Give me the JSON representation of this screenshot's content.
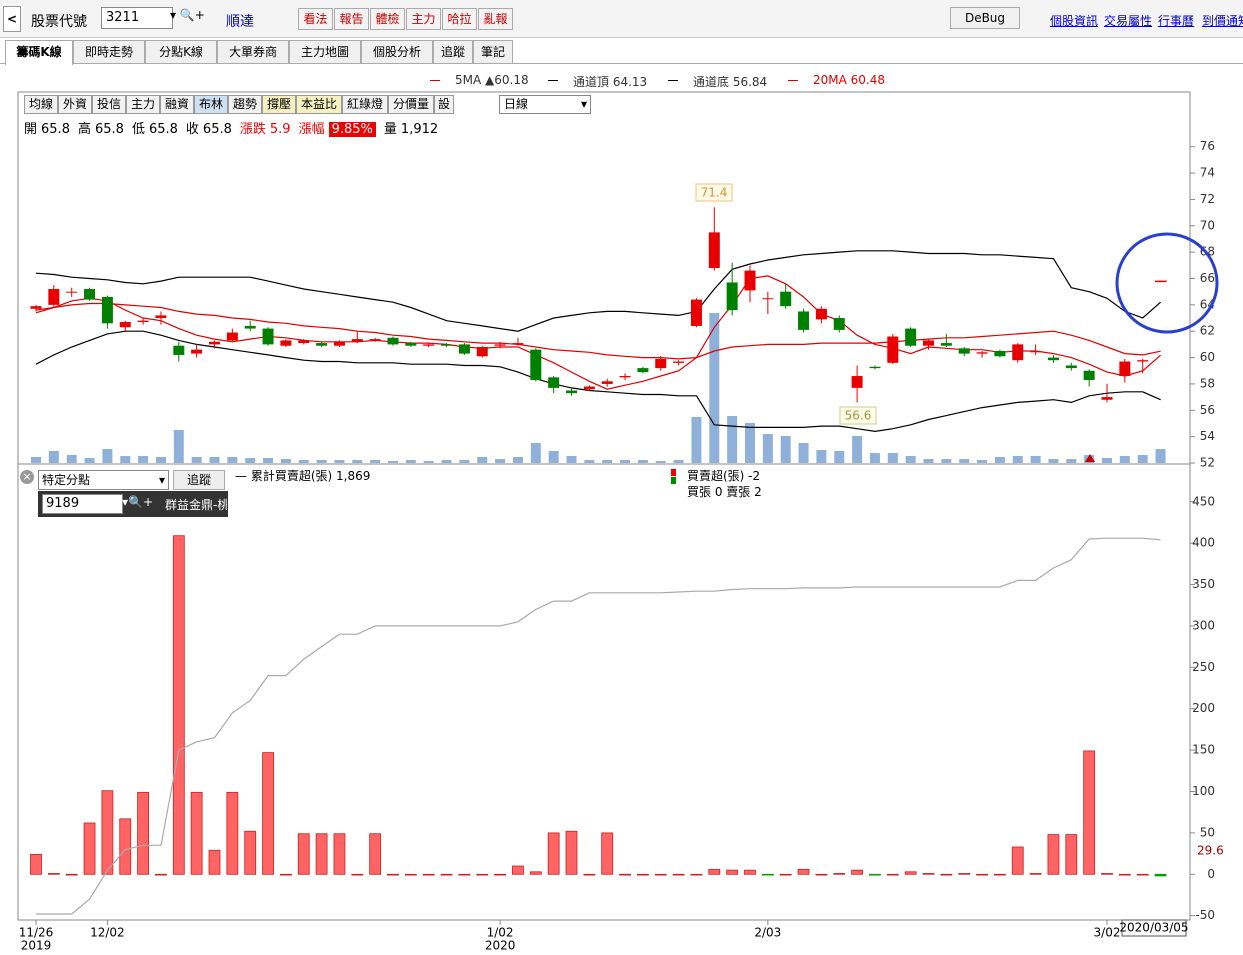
{
  "toolbar": {
    "stock_code_label": "股票代號",
    "stock_code": "3211",
    "stock_name": "順達",
    "buttons": [
      "看法",
      "報告",
      "體檢",
      "主力",
      "哈拉",
      "亂報"
    ],
    "debug": "DeBug",
    "links": [
      "個股資訊",
      "交易屬性",
      "行事曆",
      "到價通知"
    ]
  },
  "tabs": [
    "籌碼K線",
    "即時走勢",
    "分點K線",
    "大單券商",
    "主力地圖",
    "個股分析",
    "追蹤",
    "筆記"
  ],
  "legend": [
    {
      "text": "5MA ▲60.18",
      "color": "#e00000"
    },
    {
      "text": "通道頂 64.13",
      "color": "#000000"
    },
    {
      "text": "通道底 56.84",
      "color": "#000000"
    },
    {
      "text": "20MA 60.48",
      "color": "#e00000"
    }
  ],
  "chart_toolbar": {
    "buttons": [
      "均線",
      "外資",
      "投信",
      "主力",
      "融資",
      "布林",
      "趨勢",
      "撐壓",
      "本益比",
      "紅綠燈",
      "分價量",
      "設"
    ],
    "period": "日線"
  },
  "quote": [
    {
      "label": "開",
      "value": 65.8
    },
    {
      "label": "高",
      "value": 65.8
    },
    {
      "label": "低",
      "value": 65.8
    },
    {
      "label": "收",
      "value": 65.8
    },
    {
      "label": "漲跌",
      "value": 5.9
    },
    {
      "label": "漲幅",
      "value": "9.85%"
    },
    {
      "label": "量",
      "value": "1,912"
    }
  ],
  "broker_panel": {
    "mode": "特定分點",
    "track": "追蹤",
    "broker_code": "9189",
    "broker_name": "群益金鼎-桃",
    "cum_legend": "累計買賣超(張) 1,869",
    "net_legend": "買賣超(張) -2",
    "buy_sell": "買張 0 賣張 2"
  },
  "chart_data": [
    {
      "type": "candlestick",
      "categories": [
        "11/26",
        null,
        null,
        null,
        "12/02",
        null,
        null,
        null,
        null,
        null,
        null,
        null,
        null,
        null,
        null,
        null,
        null,
        null,
        null,
        null,
        null,
        null,
        null,
        null,
        null,
        null,
        "1/02",
        null,
        null,
        null,
        null,
        null,
        null,
        null,
        null,
        null,
        null,
        null,
        null,
        null,
        null,
        "2/03",
        null,
        null,
        null,
        null,
        null,
        null,
        null,
        null,
        null,
        null,
        null,
        null,
        null,
        null,
        null,
        null,
        null,
        null,
        "3/02",
        null,
        null,
        null
      ],
      "year_labels": [
        "2019",
        null,
        null,
        null,
        null,
        null,
        null,
        null,
        null,
        null,
        null,
        null,
        null,
        null,
        null,
        null,
        null,
        null,
        null,
        null,
        null,
        null,
        null,
        null,
        null,
        null,
        "2020",
        null,
        null,
        null,
        null,
        null,
        null,
        null,
        null,
        null,
        null,
        null,
        null,
        null,
        null,
        null,
        null,
        null,
        null,
        null,
        null,
        null,
        null,
        null,
        null,
        null,
        null,
        null,
        null,
        null,
        null,
        null,
        null,
        null
      ],
      "open": [
        63.7,
        64.0,
        65.0,
        65.2,
        64.6,
        62.3,
        62.7,
        63.0,
        60.9,
        60.3,
        61.0,
        61.3,
        62.4,
        62.2,
        60.9,
        61.1,
        61.1,
        60.9,
        61.2,
        61.3,
        61.5,
        61.1,
        60.9,
        61.0,
        61.0,
        60.1,
        60.9,
        61.0,
        60.6,
        58.5,
        57.5,
        57.6,
        58.0,
        58.5,
        59.2,
        59.2,
        59.6,
        62.4,
        66.8,
        65.7,
        65.1,
        64.5,
        65.0,
        63.5,
        62.9,
        63.0,
        57.7,
        59.3,
        59.6,
        62.2,
        60.9,
        61.1,
        60.7,
        60.3,
        60.5,
        59.8,
        60.4,
        60.0,
        59.4,
        59.0,
        56.8,
        58.6,
        59.7,
        65.8
      ],
      "high": [
        64.0,
        65.5,
        65.3,
        65.3,
        64.7,
        62.8,
        63.0,
        63.5,
        61.2,
        61.0,
        61.3,
        62.2,
        62.8,
        62.3,
        61.4,
        61.4,
        61.2,
        61.3,
        62.0,
        61.5,
        61.6,
        61.2,
        61.1,
        61.1,
        61.1,
        60.9,
        61.2,
        61.5,
        60.7,
        58.6,
        57.7,
        57.9,
        58.4,
        58.8,
        59.3,
        60.1,
        59.8,
        64.5,
        71.4,
        67.2,
        67.0,
        65.0,
        65.6,
        63.7,
        63.9,
        63.2,
        59.4,
        59.4,
        61.8,
        62.3,
        61.4,
        61.8,
        60.8,
        60.5,
        60.6,
        61.1,
        61.0,
        60.2,
        59.6,
        59.1,
        58.0,
        59.9,
        59.9,
        65.8
      ],
      "low": [
        63.5,
        63.8,
        64.6,
        64.3,
        62.2,
        62.0,
        62.5,
        62.5,
        59.7,
        60.0,
        60.7,
        61.2,
        62.0,
        60.9,
        60.8,
        61.0,
        60.8,
        60.8,
        61.1,
        61.2,
        60.9,
        60.8,
        60.8,
        60.8,
        60.2,
        60.0,
        60.7,
        60.9,
        58.2,
        57.3,
        57.1,
        57.5,
        57.8,
        58.3,
        58.8,
        59.0,
        59.4,
        62.3,
        66.6,
        63.2,
        64.2,
        63.3,
        63.7,
        61.9,
        62.6,
        61.9,
        56.6,
        59.1,
        59.5,
        60.8,
        60.6,
        60.8,
        60.1,
        60.0,
        60.0,
        59.6,
        60.2,
        59.6,
        59.0,
        57.8,
        56.6,
        58.1,
        58.8,
        65.8
      ],
      "close": [
        63.9,
        65.2,
        65.0,
        64.4,
        62.6,
        62.7,
        62.8,
        63.2,
        60.2,
        60.6,
        61.2,
        61.9,
        62.2,
        61.0,
        61.3,
        61.3,
        60.9,
        61.2,
        61.4,
        61.4,
        61.0,
        60.9,
        61.0,
        60.9,
        60.3,
        60.8,
        61.0,
        61.1,
        58.3,
        57.7,
        57.3,
        57.8,
        58.2,
        58.6,
        58.9,
        59.9,
        59.7,
        64.4,
        69.5,
        63.6,
        66.6,
        64.5,
        63.9,
        62.1,
        63.7,
        62.1,
        58.6,
        59.2,
        61.6,
        60.9,
        61.3,
        60.9,
        60.3,
        60.4,
        60.1,
        61.0,
        60.5,
        59.8,
        59.2,
        58.3,
        57.0,
        59.7,
        59.8,
        65.8
      ],
      "volume": [
        822,
        1644,
        1096,
        685,
        1918,
        959,
        959,
        822,
        4521,
        822,
        822,
        822,
        685,
        685,
        548,
        411,
        411,
        411,
        411,
        411,
        274,
        411,
        274,
        411,
        411,
        822,
        548,
        822,
        2740,
        1644,
        959,
        411,
        411,
        411,
        411,
        274,
        411,
        6302,
        20550,
        6439,
        5480,
        3973,
        3699,
        2740,
        1781,
        1644,
        3699,
        1370,
        1370,
        959,
        548,
        548,
        548,
        411,
        822,
        959,
        959,
        548,
        548,
        1096,
        685,
        959,
        1096,
        1912
      ],
      "up_color": "#e80000",
      "down_color": "#008000",
      "volume_color": "#8fb1d9",
      "series": [
        {
          "name": "5MA",
          "color": "#e00000",
          "values": [
            63.4,
            63.8,
            64.3,
            64.5,
            64.3,
            63.6,
            63.0,
            62.8,
            62.2,
            61.7,
            61.4,
            61.2,
            61.4,
            61.6,
            61.5,
            61.3,
            61.2,
            61.2,
            61.2,
            61.3,
            61.2,
            61.1,
            61.1,
            61.0,
            60.8,
            60.7,
            60.8,
            60.8,
            60.2,
            59.6,
            58.9,
            58.2,
            57.6,
            57.9,
            58.2,
            58.6,
            59.0,
            60.0,
            62.3,
            64.0,
            66.0,
            66.2,
            65.6,
            64.6,
            63.3,
            62.8,
            61.7,
            61.0,
            60.7,
            60.3,
            60.8,
            60.7,
            60.6,
            60.6,
            60.4,
            60.5,
            60.5,
            60.3,
            60.0,
            59.5,
            58.9,
            58.6,
            59.0,
            60.18
          ]
        },
        {
          "name": "通道頂",
          "color": "#000000",
          "values": [
            66.4,
            66.3,
            66.1,
            66.0,
            65.9,
            65.7,
            65.6,
            65.8,
            66.1,
            66.1,
            66.1,
            66.1,
            66.1,
            65.8,
            65.5,
            65.2,
            65.0,
            64.8,
            64.6,
            64.4,
            64.2,
            63.8,
            63.3,
            62.8,
            62.6,
            62.4,
            62.2,
            62.0,
            62.5,
            63.0,
            63.2,
            63.4,
            63.5,
            63.5,
            63.4,
            63.3,
            63.2,
            63.5,
            65.2,
            66.7,
            67.1,
            67.4,
            67.6,
            67.8,
            67.9,
            68.0,
            68.1,
            68.1,
            68.1,
            68.0,
            67.9,
            67.9,
            67.9,
            67.8,
            67.8,
            67.7,
            67.6,
            67.5,
            65.3,
            65.0,
            64.5,
            63.5,
            63.0,
            64.2
          ]
        },
        {
          "name": "通道底",
          "color": "#000000",
          "values": [
            59.5,
            60.2,
            60.8,
            61.3,
            61.8,
            62.0,
            62.0,
            61.7,
            61.3,
            61.0,
            60.8,
            60.6,
            60.4,
            60.2,
            60.0,
            59.8,
            59.7,
            59.7,
            59.6,
            59.6,
            59.6,
            59.5,
            59.5,
            59.5,
            59.4,
            59.4,
            59.3,
            58.9,
            58.4,
            58.0,
            57.7,
            57.5,
            57.4,
            57.3,
            57.2,
            57.2,
            57.1,
            57.1,
            54.9,
            54.8,
            54.7,
            54.7,
            54.7,
            54.7,
            54.8,
            54.8,
            54.6,
            54.4,
            54.6,
            54.9,
            55.3,
            55.6,
            55.9,
            56.2,
            56.4,
            56.6,
            56.7,
            56.8,
            56.6,
            57.1,
            57.3,
            57.4,
            57.4,
            56.8
          ]
        },
        {
          "name": "20MA",
          "color": "#e00000",
          "values": [
            63.6,
            63.8,
            64.0,
            64.1,
            64.1,
            64.0,
            63.9,
            63.8,
            63.5,
            63.3,
            63.2,
            63.0,
            62.9,
            62.7,
            62.6,
            62.4,
            62.3,
            62.2,
            62.0,
            61.9,
            61.7,
            61.6,
            61.4,
            61.3,
            61.2,
            61.1,
            61.1,
            61.0,
            60.8,
            60.6,
            60.5,
            60.4,
            60.2,
            60.1,
            60.0,
            60.0,
            59.9,
            60.0,
            60.5,
            60.8,
            60.9,
            61.0,
            61.0,
            61.0,
            61.1,
            61.1,
            61.1,
            61.1,
            61.2,
            61.3,
            61.4,
            61.5,
            61.5,
            61.6,
            61.7,
            61.8,
            61.9,
            62.0,
            61.7,
            61.3,
            60.8,
            60.3,
            60.2,
            60.48
          ]
        }
      ],
      "annotations": [
        "71.4",
        "56.6"
      ],
      "date_box": "2020/03/05",
      "ylim": [
        52,
        80
      ],
      "yticks": [
        52,
        54,
        56,
        58,
        60,
        62,
        64,
        66,
        68,
        70,
        72,
        74,
        76
      ]
    },
    {
      "type": "bar",
      "values": [
        24,
        1,
        0,
        62,
        101,
        67,
        99,
        0,
        409,
        99,
        29,
        99,
        52,
        147,
        0,
        49,
        49,
        49,
        0,
        49,
        0,
        0,
        0,
        0,
        0,
        0,
        0,
        10,
        3,
        50,
        52,
        0,
        50,
        0,
        0,
        0,
        0,
        0,
        6,
        5,
        5,
        -1,
        0,
        6,
        0,
        1,
        5,
        -1,
        0,
        3,
        1,
        0,
        1,
        0,
        0,
        33,
        1,
        48,
        48,
        149,
        1,
        0,
        0,
        -2
      ],
      "color": "#ff6464",
      "negative_color": "#00a000",
      "series": [
        {
          "name": "累計買賣超(張)",
          "color": "#aaaaaa",
          "values": [
            -48,
            -48,
            -48,
            -30,
            5,
            30,
            35,
            35,
            150,
            160,
            165,
            195,
            210,
            240,
            240,
            260,
            275,
            290,
            290,
            300,
            300,
            300,
            300,
            300,
            300,
            300,
            300,
            305,
            320,
            330,
            330,
            340,
            340,
            340,
            340,
            340,
            341,
            342,
            342,
            344,
            345,
            345,
            345,
            346,
            346,
            346,
            347,
            347,
            347,
            347,
            347,
            347,
            347,
            347,
            347,
            355,
            355,
            370,
            380,
            405,
            406,
            406,
            406,
            404
          ]
        }
      ],
      "last_label": "29.6",
      "ylim": [
        -54,
        492
      ],
      "yticks": [
        -50,
        0,
        50,
        100,
        150,
        200,
        250,
        300,
        350,
        400,
        450
      ]
    }
  ]
}
